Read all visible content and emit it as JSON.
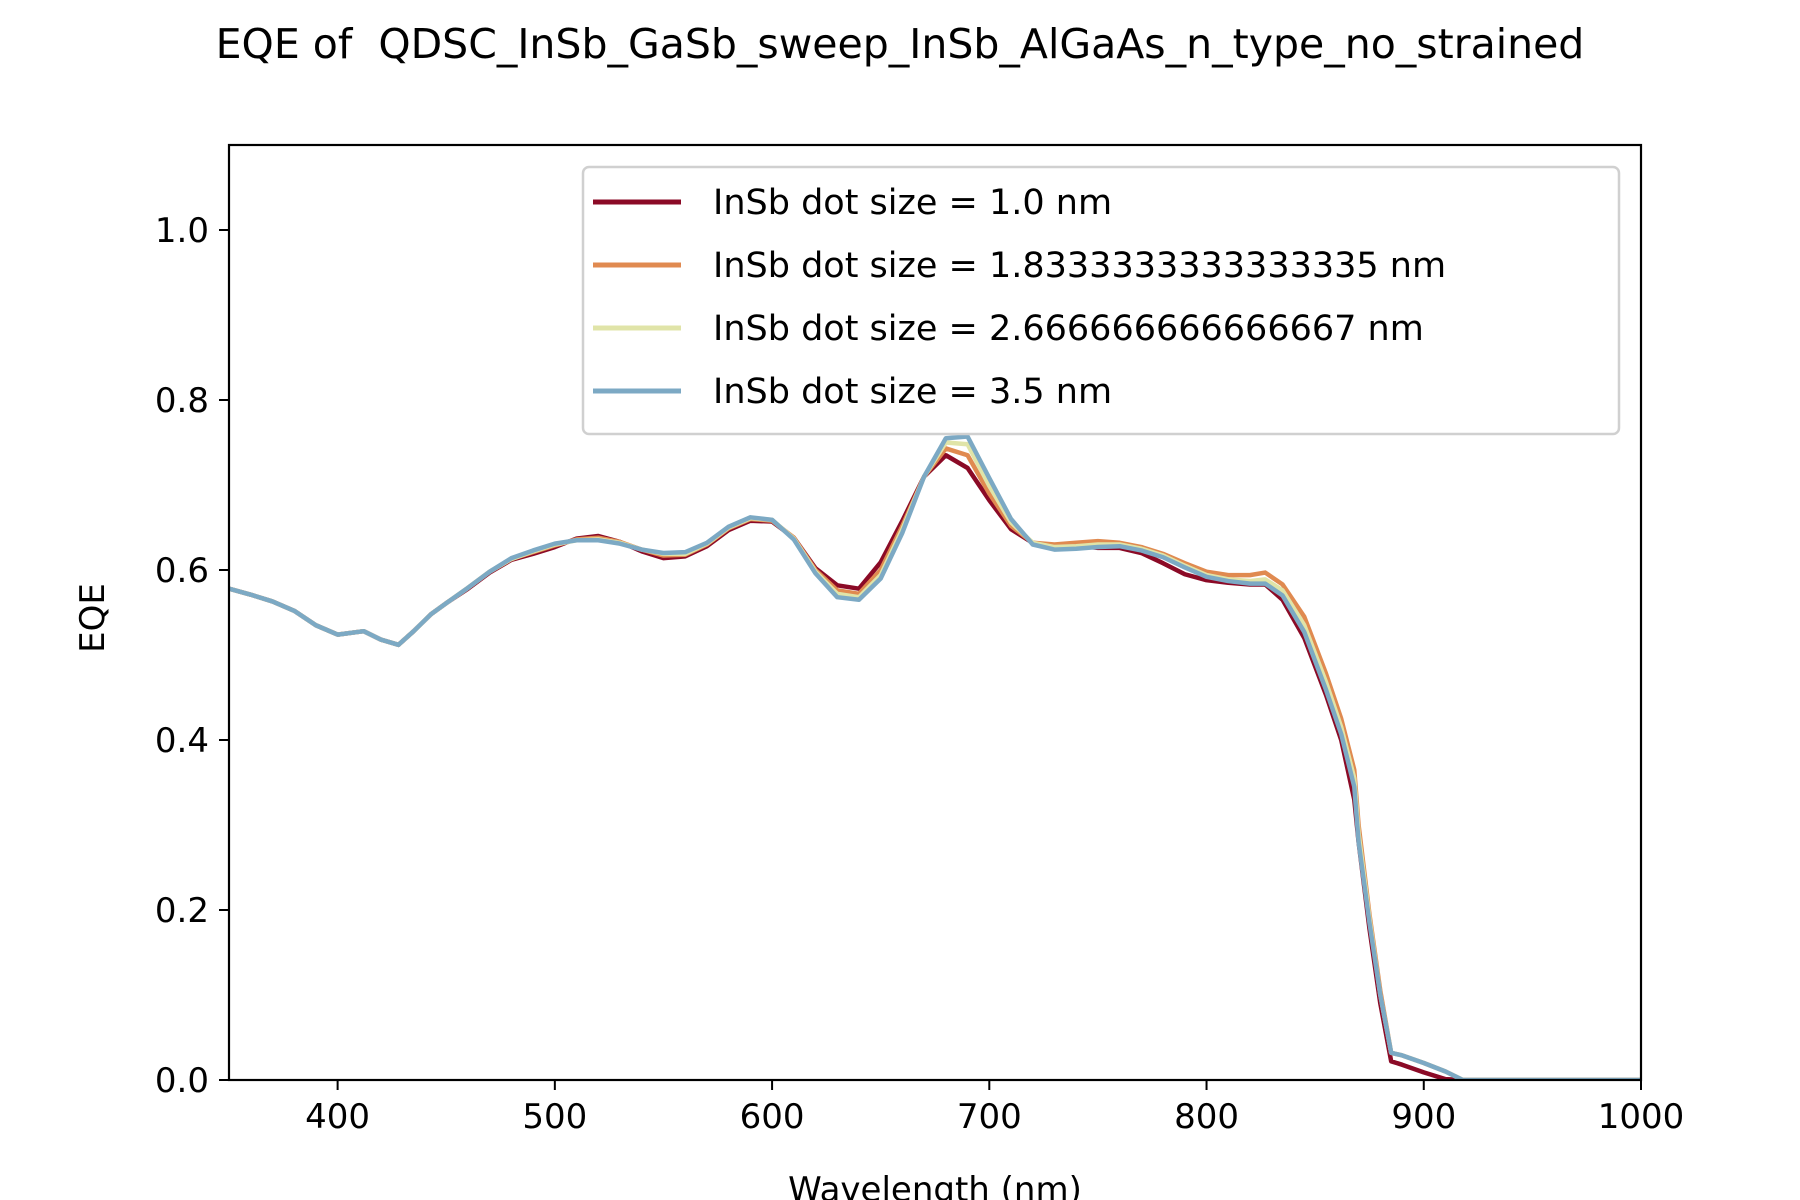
{
  "chart_data": {
    "type": "line",
    "title": "EQE of  QDSC_InSb_GaSb_sweep_InSb_AlGaAs_n_type_no_strained",
    "xlabel": "Wavelength (nm)",
    "ylabel": "EQE",
    "xlim": [
      350,
      1000
    ],
    "ylim": [
      0,
      1.1
    ],
    "xticks": [
      400,
      500,
      600,
      700,
      800,
      900,
      1000
    ],
    "yticks": [
      0.0,
      0.2,
      0.4,
      0.6,
      0.8,
      1.0
    ],
    "xtick_labels": [
      "400",
      "500",
      "600",
      "700",
      "800",
      "900",
      "1000"
    ],
    "ytick_labels": [
      "0.0",
      "0.2",
      "0.4",
      "0.6",
      "0.8",
      "1.0"
    ],
    "grid": false,
    "legend_position": "top-right",
    "x": [
      350,
      360,
      370,
      380,
      390,
      400,
      412,
      420,
      428,
      435,
      443,
      450,
      460,
      470,
      480,
      490,
      500,
      510,
      520,
      530,
      540,
      550,
      560,
      570,
      580,
      590,
      600,
      610,
      620,
      630,
      640,
      650,
      660,
      670,
      680,
      690,
      700,
      710,
      720,
      730,
      740,
      750,
      760,
      770,
      780,
      790,
      800,
      810,
      820,
      827,
      835,
      845,
      855,
      862,
      868,
      870,
      875,
      880,
      885,
      890,
      900,
      910,
      918,
      930,
      950,
      1000
    ],
    "series": [
      {
        "name": "InSb dot size = 1.0 nm",
        "color": "#8b0a26",
        "values": [
          0.578,
          0.571,
          0.563,
          0.552,
          0.535,
          0.524,
          0.528,
          0.518,
          0.512,
          0.528,
          0.548,
          0.561,
          0.578,
          0.597,
          0.612,
          0.619,
          0.627,
          0.637,
          0.64,
          0.633,
          0.622,
          0.614,
          0.616,
          0.628,
          0.647,
          0.658,
          0.657,
          0.638,
          0.602,
          0.582,
          0.578,
          0.609,
          0.658,
          0.71,
          0.735,
          0.72,
          0.682,
          0.648,
          0.632,
          0.628,
          0.629,
          0.626,
          0.626,
          0.62,
          0.608,
          0.595,
          0.588,
          0.585,
          0.583,
          0.583,
          0.565,
          0.52,
          0.453,
          0.4,
          0.33,
          0.28,
          0.178,
          0.09,
          0.022,
          0.018,
          0.009,
          0.001,
          0.0,
          0.0,
          0.0,
          0.0
        ]
      },
      {
        "name": "InSb dot size = 1.8333333333333335 nm",
        "color": "#e08a50",
        "values": [
          0.578,
          0.571,
          0.563,
          0.552,
          0.535,
          0.524,
          0.528,
          0.518,
          0.512,
          0.528,
          0.548,
          0.561,
          0.579,
          0.598,
          0.613,
          0.621,
          0.629,
          0.636,
          0.638,
          0.633,
          0.624,
          0.617,
          0.618,
          0.63,
          0.649,
          0.66,
          0.658,
          0.638,
          0.6,
          0.576,
          0.572,
          0.6,
          0.652,
          0.71,
          0.743,
          0.735,
          0.69,
          0.652,
          0.632,
          0.63,
          0.632,
          0.634,
          0.632,
          0.627,
          0.619,
          0.608,
          0.598,
          0.594,
          0.594,
          0.597,
          0.583,
          0.545,
          0.478,
          0.425,
          0.365,
          0.3,
          0.195,
          0.105,
          0.032,
          0.029,
          0.02,
          0.01,
          0.0,
          0.0,
          0.0,
          0.0
        ]
      },
      {
        "name": "InSb dot size = 2.666666666666667 nm",
        "color": "#e0e4a8",
        "values": [
          0.578,
          0.571,
          0.563,
          0.552,
          0.535,
          0.524,
          0.528,
          0.518,
          0.512,
          0.528,
          0.548,
          0.561,
          0.579,
          0.598,
          0.613,
          0.622,
          0.63,
          0.635,
          0.636,
          0.632,
          0.624,
          0.619,
          0.619,
          0.631,
          0.65,
          0.661,
          0.659,
          0.637,
          0.598,
          0.572,
          0.568,
          0.594,
          0.648,
          0.71,
          0.75,
          0.748,
          0.699,
          0.656,
          0.632,
          0.627,
          0.628,
          0.63,
          0.63,
          0.625,
          0.617,
          0.605,
          0.594,
          0.589,
          0.587,
          0.589,
          0.576,
          0.535,
          0.468,
          0.415,
          0.355,
          0.29,
          0.19,
          0.1,
          0.032,
          0.029,
          0.02,
          0.01,
          0.0,
          0.0,
          0.0,
          0.0
        ]
      },
      {
        "name": "InSb dot size = 3.5 nm",
        "color": "#7ca9c4",
        "values": [
          0.578,
          0.571,
          0.563,
          0.552,
          0.535,
          0.524,
          0.528,
          0.518,
          0.512,
          0.528,
          0.548,
          0.561,
          0.579,
          0.598,
          0.614,
          0.623,
          0.631,
          0.635,
          0.635,
          0.631,
          0.624,
          0.62,
          0.621,
          0.632,
          0.651,
          0.662,
          0.659,
          0.636,
          0.596,
          0.568,
          0.565,
          0.59,
          0.644,
          0.71,
          0.755,
          0.757,
          0.708,
          0.66,
          0.63,
          0.624,
          0.625,
          0.627,
          0.628,
          0.623,
          0.615,
          0.603,
          0.592,
          0.587,
          0.584,
          0.584,
          0.57,
          0.527,
          0.459,
          0.407,
          0.345,
          0.28,
          0.185,
          0.1,
          0.032,
          0.029,
          0.02,
          0.01,
          0.0,
          0.0,
          0.0,
          0.0
        ]
      }
    ]
  }
}
